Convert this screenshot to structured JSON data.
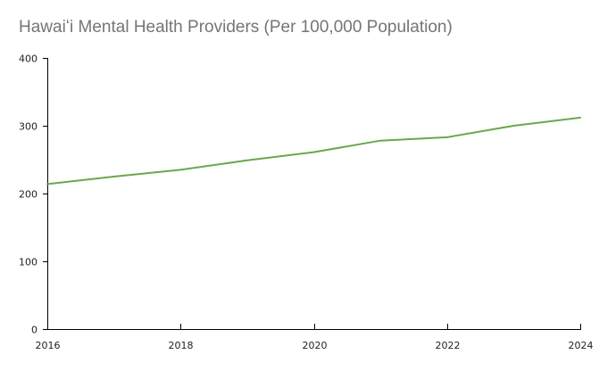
{
  "chart_data": {
    "type": "line",
    "title": "Hawaiʻi Mental Health Providers (Per 100,000 Population)",
    "xlabel": "",
    "ylabel": "",
    "x": [
      2016,
      2017,
      2018,
      2019,
      2020,
      2021,
      2022,
      2023,
      2024
    ],
    "series": [
      {
        "name": "Mental Health Providers per 100,000",
        "values": [
          214,
          225,
          235,
          249,
          261,
          278,
          283,
          300,
          312
        ],
        "color": "#6aa84f"
      }
    ],
    "xlim": [
      2016,
      2024
    ],
    "ylim": [
      0,
      400
    ],
    "xticks": [
      "2016",
      "2018",
      "2020",
      "2022",
      "2024"
    ],
    "xtick_values": [
      2016,
      2018,
      2020,
      2022,
      2024
    ],
    "yticks": [
      "0",
      "100",
      "200",
      "300",
      "400"
    ],
    "ytick_values": [
      0,
      100,
      200,
      300,
      400
    ],
    "grid": false,
    "legend": "none"
  }
}
